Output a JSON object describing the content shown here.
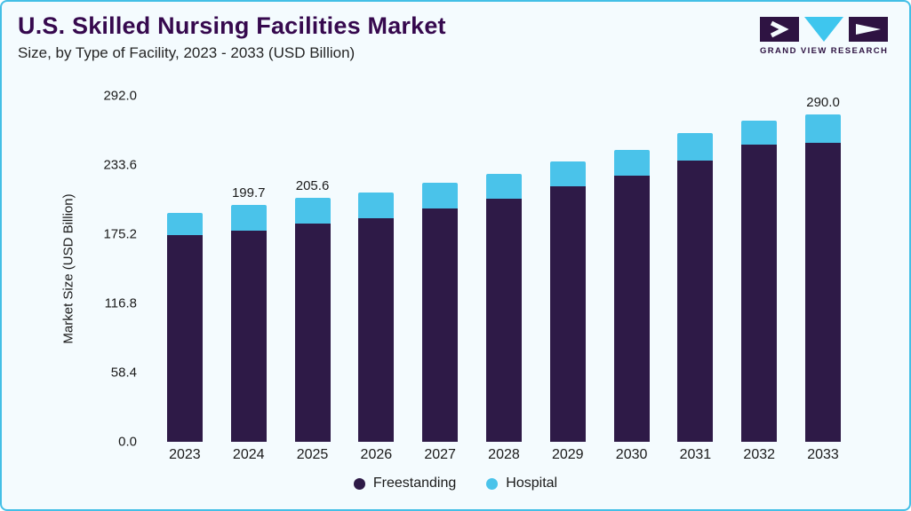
{
  "header": {
    "title": "U.S. Skilled Nursing Facilities Market",
    "subtitle": "Size, by Type of Facility, 2023 - 2033 (USD Billion)"
  },
  "logo": {
    "text": "GRAND VIEW RESEARCH"
  },
  "colors": {
    "title": "#36094e",
    "border": "#43bfe6",
    "background": "#f4fbfe",
    "freestanding": "#2e1a47",
    "hospital": "#4ac3ea"
  },
  "chart_data": {
    "type": "bar",
    "stacked": true,
    "title": "U.S. Skilled Nursing Facilities Market Size, by Type of Facility, 2023 - 2033 (USD Billion)",
    "xlabel": "",
    "ylabel": "Market Size (USD Billion)",
    "ylim": [
      0,
      292.0
    ],
    "yticks": [
      0.0,
      58.4,
      116.8,
      175.2,
      233.6,
      292.0
    ],
    "grid": false,
    "legend_position": "bottom",
    "categories": [
      "2023",
      "2024",
      "2025",
      "2026",
      "2027",
      "2028",
      "2029",
      "2030",
      "2031",
      "2032",
      "2033"
    ],
    "series": [
      {
        "name": "Freestanding",
        "color": "#2e1a47",
        "values": [
          174.2,
          178.0,
          184.0,
          189.0,
          197.0,
          205.5,
          215.5,
          224.5,
          237.5,
          250.5,
          264.5
        ]
      },
      {
        "name": "Hospital",
        "color": "#4ac3ea",
        "values": [
          19.3,
          21.7,
          21.6,
          21.6,
          21.4,
          20.6,
          21.5,
          21.8,
          22.8,
          20.7,
          25.5
        ]
      }
    ],
    "totals": [
      193.5,
      199.7,
      205.6,
      210.6,
      218.4,
      226.1,
      237.0,
      246.3,
      260.3,
      271.2,
      290.0
    ],
    "bar_labels": [
      "",
      "199.7",
      "205.6",
      "",
      "",
      "",
      "",
      "",
      "",
      "",
      "290.0"
    ]
  }
}
